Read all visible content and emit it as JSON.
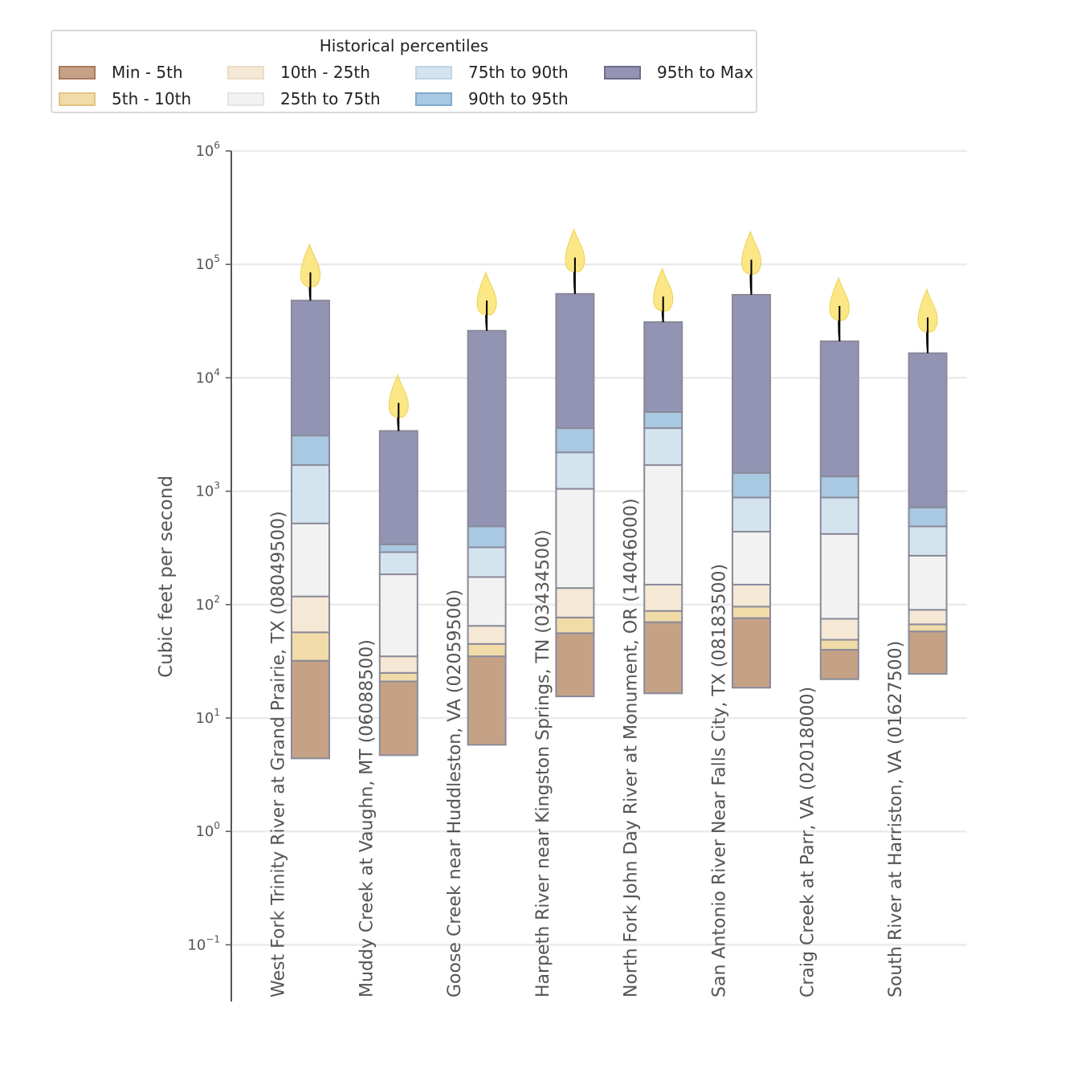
{
  "legend": {
    "title": "Historical percentiles",
    "items": [
      {
        "label": "Min - 5th",
        "fill": "#c5a286",
        "stroke": "#a87a5e"
      },
      {
        "label": "5th - 10th",
        "fill": "#f1dba8",
        "stroke": "#e2c385"
      },
      {
        "label": "10th - 25th",
        "fill": "#f5e8d5",
        "stroke": "#ebdcc5"
      },
      {
        "label": "25th to 75th",
        "fill": "#f2f2f2",
        "stroke": "#e4e4e4"
      },
      {
        "label": "75th to 90th",
        "fill": "#d3e4ef",
        "stroke": "#bdd5e6"
      },
      {
        "label": "90th to 95th",
        "fill": "#a9c8e1",
        "stroke": "#7faacd"
      },
      {
        "label": "95th to Max",
        "fill": "#9393b3",
        "stroke": "#6c6c8c"
      }
    ]
  },
  "chart_data": {
    "type": "bar",
    "subtype": "stacked-floating-log",
    "ylabel": "Cubic feet per second",
    "yscale": "log",
    "ylim": [
      0.03,
      1000000
    ],
    "yticks": [
      {
        "base": "10",
        "exp": "6",
        "value": 1000000
      },
      {
        "base": "10",
        "exp": "5",
        "value": 100000
      },
      {
        "base": "10",
        "exp": "4",
        "value": 10000
      },
      {
        "base": "10",
        "exp": "3",
        "value": 1000
      },
      {
        "base": "10",
        "exp": "2",
        "value": 100
      },
      {
        "base": "10",
        "exp": "1",
        "value": 10
      },
      {
        "base": "10",
        "exp": "0",
        "value": 1
      },
      {
        "base": "10",
        "exp": "−1",
        "value": 0.1
      }
    ],
    "categories": [
      "West Fork Trinity River at Grand Prairie, TX (08049500)",
      "Muddy Creek at Vaughn, MT (06088500)",
      "Goose Creek near Huddleston, VA (02059500)",
      "Harpeth River near Kingston Springs, TN (03434500)",
      "North Fork John Day River at Monument, OR (14046000)",
      "San Antonio River Near Falls City, TX (08183500)",
      "Craig Creek at Parr, VA (02018000)",
      "South River at Harriston, VA (01627500)"
    ],
    "percentile_bounds": [
      "min",
      "p5",
      "p10",
      "p25",
      "p75",
      "p90",
      "p95",
      "max"
    ],
    "values": [
      [
        4.4,
        32,
        57,
        118,
        520,
        1700,
        3100,
        48000
      ],
      [
        4.7,
        21,
        25,
        35,
        185,
        290,
        340,
        3400
      ],
      [
        5.8,
        35,
        45,
        65,
        175,
        320,
        490,
        26000
      ],
      [
        15.5,
        56,
        77,
        140,
        1050,
        2200,
        3600,
        55000
      ],
      [
        16.5,
        70,
        88,
        150,
        1700,
        3600,
        5000,
        31000
      ],
      [
        18.5,
        76,
        96,
        150,
        440,
        880,
        1450,
        54000
      ],
      [
        22,
        40,
        49,
        75,
        420,
        880,
        1350,
        21000
      ],
      [
        24.5,
        58,
        67,
        90,
        270,
        490,
        720,
        16500
      ]
    ],
    "flames": [
      85000,
      6000,
      48000,
      115000,
      52000,
      110000,
      43000,
      34000
    ]
  }
}
